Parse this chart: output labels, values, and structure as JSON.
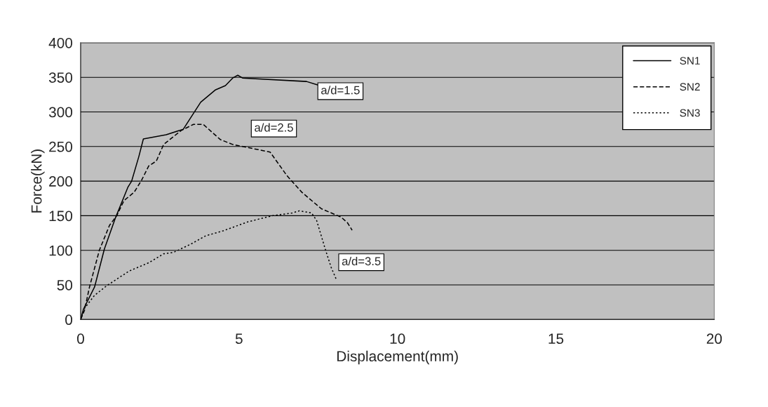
{
  "chart_data": {
    "type": "line",
    "xlabel": "Displacement(mm)",
    "ylabel": "Force(kN)",
    "xlim": [
      0,
      20
    ],
    "xticks": [
      0,
      5,
      10,
      15,
      20
    ],
    "ylim": [
      0,
      400
    ],
    "yticks": [
      0,
      50,
      100,
      150,
      200,
      250,
      300,
      350,
      400
    ],
    "grid": "y",
    "legend": "top right",
    "marker": "none",
    "series": [
      {
        "name": "SN1",
        "color": "#000000",
        "line_style": "solid",
        "x": [
          0,
          0.09,
          0.44,
          0.75,
          1.1,
          1.49,
          1.61,
          1.84,
          1.98,
          2.7,
          3.24,
          3.79,
          4.26,
          4.57,
          4.8,
          4.96,
          5.11,
          7.13,
          7.48
        ],
        "values": [
          0,
          15,
          47,
          102,
          147,
          191,
          200,
          236,
          261,
          267,
          275,
          314,
          332,
          338,
          349,
          353,
          349,
          344,
          339
        ]
      },
      {
        "name": "SN2",
        "color": "#000000",
        "line_style": "dashed",
        "x": [
          0,
          0.12,
          0.28,
          0.59,
          0.91,
          1.14,
          1.37,
          1.69,
          1.92,
          2.15,
          2.39,
          2.62,
          3.17,
          3.56,
          3.87,
          4.41,
          4.8,
          5.98,
          6.51,
          6.98,
          7.6,
          8.22,
          8.42,
          8.57
        ],
        "values": [
          0,
          13,
          47,
          100,
          136,
          150,
          172,
          184,
          201,
          222,
          229,
          253,
          273,
          282,
          282,
          260,
          253,
          242,
          208,
          184,
          160,
          148,
          140,
          129
        ]
      },
      {
        "name": "SN3",
        "color": "#000000",
        "line_style": "dotted",
        "x": [
          0,
          0.12,
          0.44,
          0.83,
          1.53,
          2.15,
          2.62,
          2.93,
          3.48,
          3.95,
          4.49,
          5.27,
          6.05,
          6.68,
          6.9,
          7.29,
          7.45,
          7.72,
          7.91,
          8.07
        ],
        "values": [
          0,
          16,
          35,
          49,
          70,
          82,
          95,
          97,
          109,
          121,
          128,
          141,
          150,
          154,
          157,
          154,
          143,
          102,
          75,
          58
        ]
      }
    ],
    "annotations": [
      "a/d=1.5",
      "a/d=2.5",
      "a/d=3.5"
    ]
  }
}
